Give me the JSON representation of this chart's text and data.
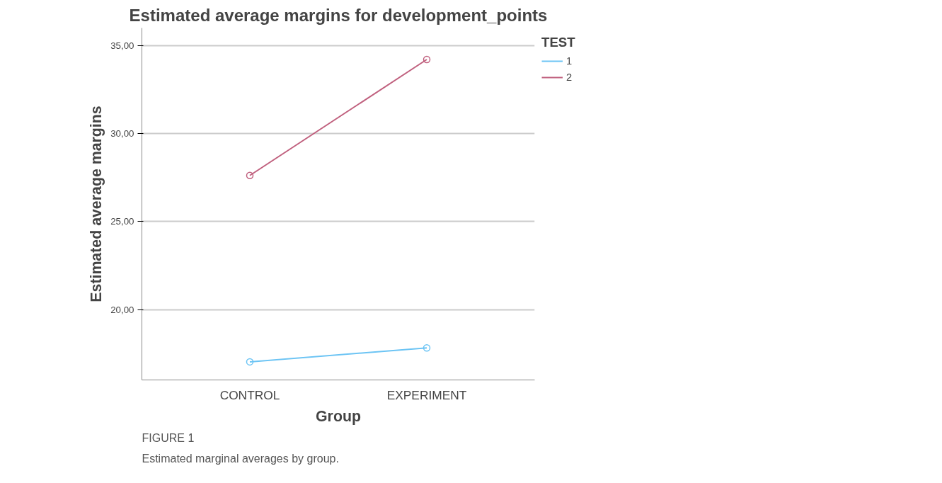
{
  "chart_data": {
    "type": "line",
    "title": "Estimated average margins for development_points",
    "xlabel": "Group",
    "ylabel": "Estimated average margins",
    "legend_title": "TEST",
    "categories": [
      "CONTROL",
      "EXPERIMENT"
    ],
    "series": [
      {
        "name": "1",
        "color": "#6cc4f4",
        "values": [
          17.03,
          17.82
        ]
      },
      {
        "name": "2",
        "color": "#c0607e",
        "values": [
          27.62,
          34.21
        ]
      }
    ],
    "ylim": [
      16,
      36
    ],
    "yticks": [
      {
        "value": 20,
        "label": "20,00"
      },
      {
        "value": 25,
        "label": "25,00"
      },
      {
        "value": 30,
        "label": "30,00"
      },
      {
        "value": 35,
        "label": "35,00"
      }
    ],
    "grid": "y",
    "legend": "top right",
    "marker": "circle",
    "line_style": "solid",
    "annotations": [
      "FIGURE 1",
      "Estimated marginal averages by group."
    ]
  }
}
